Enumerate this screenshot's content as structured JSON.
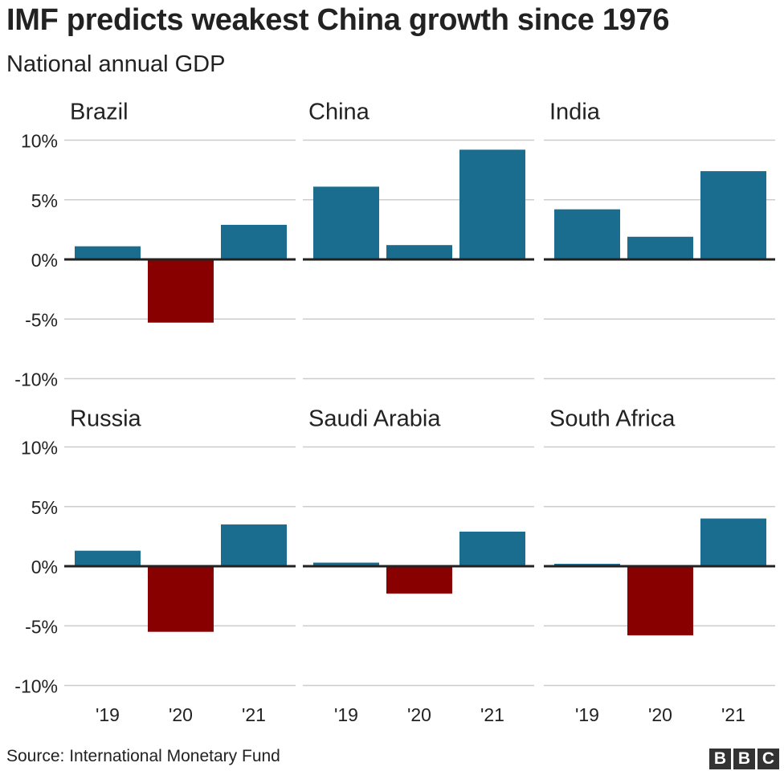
{
  "title": "IMF predicts weakest China growth since 1976",
  "subtitle": "National annual GDP",
  "source": "Source: International Monetary Fund",
  "logo": "BBC",
  "colors": {
    "positive": "#1a6d8e",
    "negative": "#880000"
  },
  "chart_data": {
    "type": "bar",
    "layout": "small-multiples 3x2",
    "categories": [
      "'19",
      "'20",
      "'21"
    ],
    "ylim": [
      -10,
      10
    ],
    "yticks": [
      10,
      5,
      0,
      -5,
      -10
    ],
    "ytick_labels": [
      "10%",
      "5%",
      "0%",
      "-5%",
      "-10%"
    ],
    "grid": true,
    "panels": [
      {
        "name": "Brazil",
        "values": [
          1.1,
          -5.3,
          2.9
        ]
      },
      {
        "name": "China",
        "values": [
          6.1,
          1.2,
          9.2
        ]
      },
      {
        "name": "India",
        "values": [
          4.2,
          1.9,
          7.4
        ]
      },
      {
        "name": "Russia",
        "values": [
          1.3,
          -5.5,
          3.5
        ]
      },
      {
        "name": "Saudi Arabia",
        "values": [
          0.3,
          -2.3,
          2.9
        ]
      },
      {
        "name": "South Africa",
        "values": [
          0.2,
          -5.8,
          4.0
        ]
      }
    ]
  }
}
